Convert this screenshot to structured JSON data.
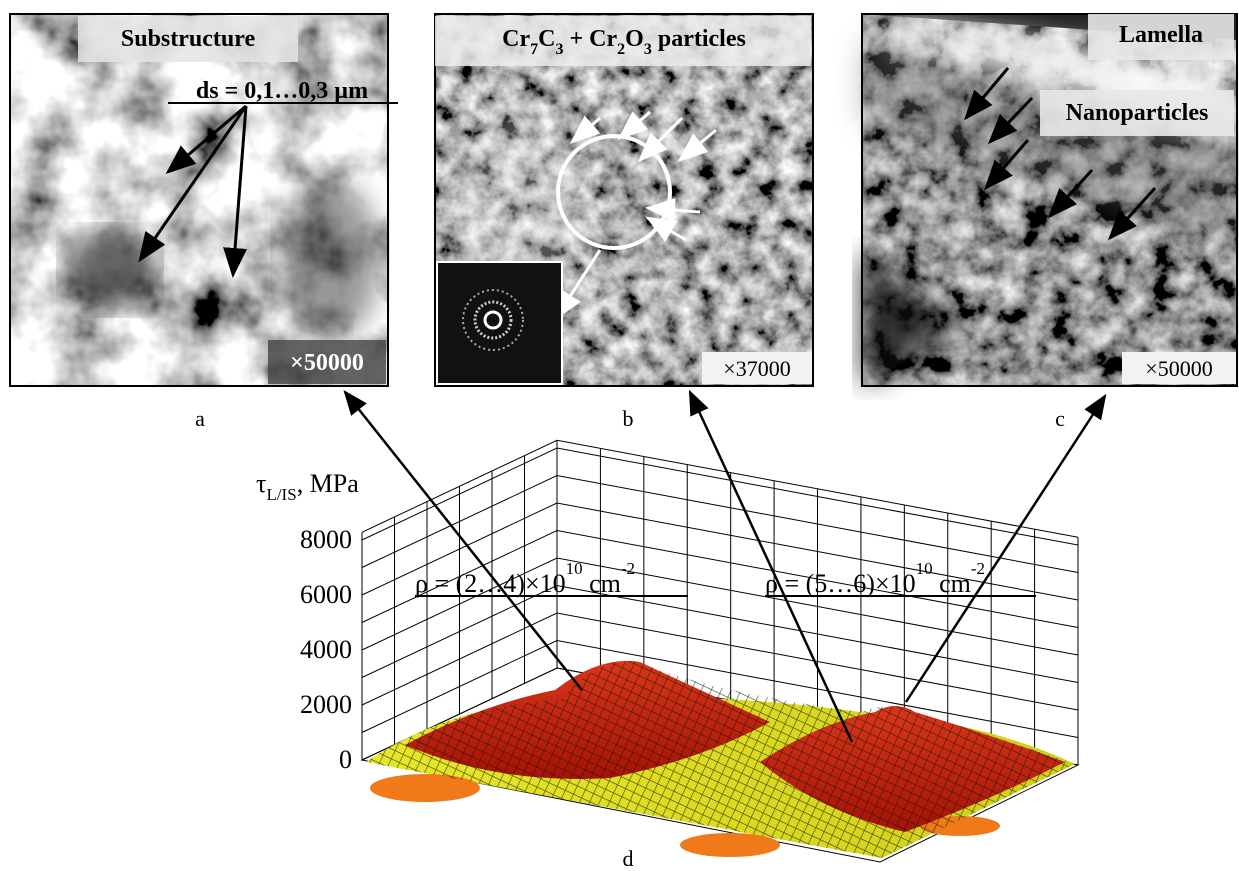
{
  "panels": [
    {
      "label": "a",
      "title": "Substructure",
      "annotation": "ds = 0,1…0,3 µm",
      "magnification": "×50000"
    },
    {
      "label": "b",
      "title_parts": [
        "Cr",
        "7",
        "C",
        "3",
        " + Cr",
        "2",
        "O",
        "3",
        " particles"
      ],
      "magnification": "×37000"
    },
    {
      "label": "c",
      "title": "Lamella",
      "annotation": "Nanoparticles",
      "magnification": "×50000"
    }
  ],
  "chart_data": {
    "type": "surface",
    "label": "d",
    "z_label_parts": [
      "τ",
      "L/IS",
      ", MPa"
    ],
    "zlim": [
      0,
      8000
    ],
    "zticks": [
      0,
      2000,
      4000,
      6000,
      8000
    ],
    "grid": true,
    "annotations": [
      {
        "parts": [
          "ρ = (2…4)×10",
          "10",
          " cm",
          "-2"
        ]
      },
      {
        "parts": [
          "ρ = (5…6)×10",
          "10",
          " cm",
          "-2"
        ]
      }
    ]
  }
}
